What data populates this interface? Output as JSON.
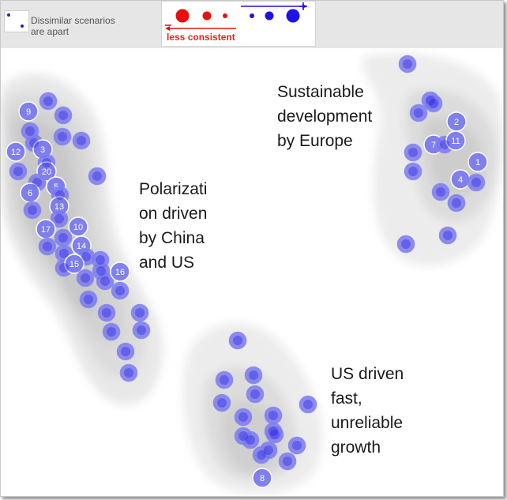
{
  "legend": {
    "dissimilar_text": "Dissimilar scenarios\nare apart",
    "consistency_label": "less consistent",
    "less_color": "#e8100c",
    "more_color": "#1f14e6"
  },
  "regions": {
    "europe": "Sustainable\ndevelopment\nby Europe",
    "china_us": "Polarizati\non driven\nby China\nand US",
    "us_fast": "US driven\nfast,\nunreliable\ngrowth"
  },
  "chart_data": {
    "type": "scatter",
    "title": "",
    "xlabel": "",
    "ylabel": "",
    "xlim": [
      0,
      636
    ],
    "ylim": [
      0,
      567
    ],
    "grid": false,
    "point_color": "#7a7aee",
    "highlight_color": "#1f14e6",
    "density_color": "#c8c8c8",
    "points": [
      {
        "x": 60,
        "y": 67
      },
      {
        "x": 35,
        "y": 80,
        "label": "9"
      },
      {
        "x": 79,
        "y": 85
      },
      {
        "x": 37,
        "y": 105
      },
      {
        "x": 42,
        "y": 120
      },
      {
        "x": 19,
        "y": 131,
        "label": "12"
      },
      {
        "x": 53,
        "y": 128,
        "label": "3"
      },
      {
        "x": 78,
        "y": 112
      },
      {
        "x": 102,
        "y": 117
      },
      {
        "x": 58,
        "y": 145
      },
      {
        "x": 58,
        "y": 156,
        "label": "20"
      },
      {
        "x": 22,
        "y": 156
      },
      {
        "x": 46,
        "y": 170
      },
      {
        "x": 70,
        "y": 175,
        "label": "5"
      },
      {
        "x": 122,
        "y": 162
      },
      {
        "x": 37,
        "y": 183,
        "label": "6"
      },
      {
        "x": 75,
        "y": 186
      },
      {
        "x": 74,
        "y": 200,
        "label": "13"
      },
      {
        "x": 40,
        "y": 205
      },
      {
        "x": 74,
        "y": 216
      },
      {
        "x": 57,
        "y": 229,
        "label": "17"
      },
      {
        "x": 98,
        "y": 226,
        "label": "10"
      },
      {
        "x": 59,
        "y": 251
      },
      {
        "x": 79,
        "y": 240
      },
      {
        "x": 102,
        "y": 250,
        "label": "14"
      },
      {
        "x": 80,
        "y": 260
      },
      {
        "x": 108,
        "y": 264
      },
      {
        "x": 126,
        "y": 268
      },
      {
        "x": 80,
        "y": 278
      },
      {
        "x": 93,
        "y": 273,
        "label": "15"
      },
      {
        "x": 127,
        "y": 282
      },
      {
        "x": 107,
        "y": 291
      },
      {
        "x": 132,
        "y": 295
      },
      {
        "x": 151,
        "y": 283,
        "label": "16"
      },
      {
        "x": 111,
        "y": 318
      },
      {
        "x": 151,
        "y": 307
      },
      {
        "x": 134,
        "y": 335
      },
      {
        "x": 176,
        "y": 335
      },
      {
        "x": 140,
        "y": 359
      },
      {
        "x": 178,
        "y": 357
      },
      {
        "x": 158,
        "y": 384
      },
      {
        "x": 162,
        "y": 411
      },
      {
        "x": 515,
        "y": 20
      },
      {
        "x": 544,
        "y": 66
      },
      {
        "x": 548,
        "y": 70
      },
      {
        "x": 529,
        "y": 82
      },
      {
        "x": 577,
        "y": 93,
        "label": "2"
      },
      {
        "x": 548,
        "y": 122,
        "label": "7"
      },
      {
        "x": 562,
        "y": 122
      },
      {
        "x": 576,
        "y": 117,
        "label": "11"
      },
      {
        "x": 522,
        "y": 132
      },
      {
        "x": 604,
        "y": 144,
        "label": "1"
      },
      {
        "x": 522,
        "y": 156
      },
      {
        "x": 582,
        "y": 166,
        "label": "4"
      },
      {
        "x": 557,
        "y": 182
      },
      {
        "x": 602,
        "y": 170
      },
      {
        "x": 577,
        "y": 196
      },
      {
        "x": 566,
        "y": 237
      },
      {
        "x": 513,
        "y": 248
      },
      {
        "x": 300,
        "y": 370
      },
      {
        "x": 320,
        "y": 414
      },
      {
        "x": 283,
        "y": 420
      },
      {
        "x": 322,
        "y": 438
      },
      {
        "x": 280,
        "y": 449
      },
      {
        "x": 389,
        "y": 451
      },
      {
        "x": 307,
        "y": 467
      },
      {
        "x": 345,
        "y": 465
      },
      {
        "x": 345,
        "y": 485
      },
      {
        "x": 307,
        "y": 491
      },
      {
        "x": 347,
        "y": 489
      },
      {
        "x": 316,
        "y": 496
      },
      {
        "x": 375,
        "y": 503
      },
      {
        "x": 330,
        "y": 515
      },
      {
        "x": 339,
        "y": 509
      },
      {
        "x": 363,
        "y": 523
      },
      {
        "x": 331,
        "y": 544,
        "label": "8"
      }
    ]
  }
}
